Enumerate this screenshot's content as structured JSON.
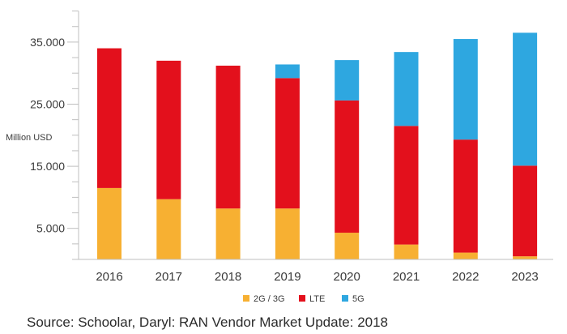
{
  "chart_data": {
    "type": "bar",
    "stacked": true,
    "title": "",
    "xlabel": "",
    "ylabel": "Million USD",
    "categories": [
      "2016",
      "2017",
      "2018",
      "2019",
      "2020",
      "2021",
      "2022",
      "2023"
    ],
    "series": [
      {
        "name": "2G / 3G",
        "color": "#f7b032",
        "values": [
          11500,
          9700,
          8200,
          8200,
          4300,
          2400,
          1100,
          500
        ]
      },
      {
        "name": "LTE",
        "color": "#e3101c",
        "values": [
          22500,
          22300,
          23000,
          21000,
          21300,
          19100,
          18200,
          14600
        ]
      },
      {
        "name": "5G",
        "color": "#2ea7e0",
        "values": [
          0,
          0,
          0,
          2200,
          6500,
          11900,
          16200,
          21400
        ]
      }
    ],
    "yticks": [
      "5.000",
      "15.000",
      "25.000",
      "35.000"
    ],
    "ytick_values": [
      5000,
      15000,
      25000,
      35000
    ],
    "ylim": [
      0,
      40000
    ],
    "legend_position": "bottom",
    "grid": false
  },
  "source": "Source: Schoolar, Daryl: RAN Vendor Market Update: 2018"
}
